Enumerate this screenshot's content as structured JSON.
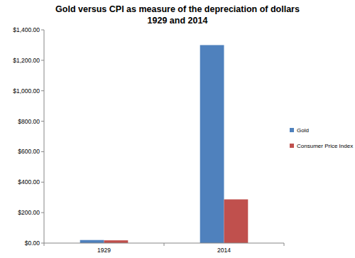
{
  "chart_data": {
    "type": "bar",
    "title": "Gold versus CPI as measure of the depreciation of dollars",
    "subtitle": "1929 and 2014",
    "categories": [
      "1929",
      "2014"
    ],
    "series": [
      {
        "name": "Gold",
        "color": "#4f81bd",
        "values": [
          20,
          1300
        ]
      },
      {
        "name": "Consumer Price Index",
        "color": "#c0504d",
        "values": [
          18,
          287
        ]
      }
    ],
    "ylim": [
      0,
      1400
    ],
    "yticks": [
      {
        "value": 0,
        "label": "$0.00"
      },
      {
        "value": 200,
        "label": "$200.00"
      },
      {
        "value": 400,
        "label": "$400.00"
      },
      {
        "value": 600,
        "label": "$600.00"
      },
      {
        "value": 800,
        "label": "$800.00"
      },
      {
        "value": 1000,
        "label": "$1,000.00"
      },
      {
        "value": 1200,
        "label": "$1,200.00"
      },
      {
        "value": 1400,
        "label": "$1,400.00"
      }
    ],
    "grid": false,
    "legend": "right"
  }
}
